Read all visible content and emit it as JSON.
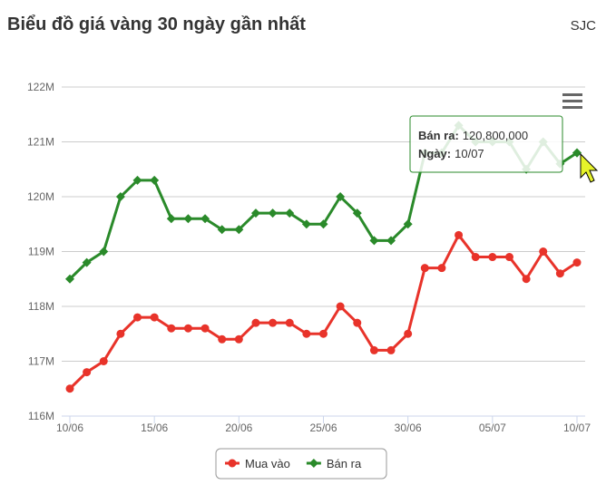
{
  "chart_data": {
    "type": "line",
    "title": "Biểu đồ giá vàng 30 ngày gần nhất",
    "subtitle": "SJC",
    "categories": [
      "10/06",
      null,
      null,
      null,
      null,
      "15/06",
      null,
      null,
      null,
      null,
      "20/06",
      null,
      null,
      null,
      null,
      "25/06",
      null,
      null,
      null,
      null,
      "30/06",
      null,
      null,
      null,
      null,
      "05/07",
      null,
      null,
      null,
      null,
      "10/07"
    ],
    "series": [
      {
        "name": "Mua vào",
        "color": "#e8332a",
        "marker": "circle",
        "values": [
          116.5,
          116.8,
          117.0,
          117.5,
          117.8,
          117.8,
          117.6,
          117.6,
          117.6,
          117.4,
          117.4,
          117.7,
          117.7,
          117.7,
          117.5,
          117.5,
          118.0,
          117.7,
          117.2,
          117.2,
          117.5,
          118.7,
          118.7,
          119.3,
          118.9,
          118.9,
          118.9,
          118.5,
          119.0,
          118.6,
          118.8
        ]
      },
      {
        "name": "Bán ra",
        "color": "#2a8a2a",
        "marker": "diamond",
        "values": [
          118.5,
          118.8,
          119.0,
          120.0,
          120.3,
          120.3,
          119.6,
          119.6,
          119.6,
          119.4,
          119.4,
          119.7,
          119.7,
          119.7,
          119.5,
          119.5,
          120.0,
          119.7,
          119.2,
          119.2,
          119.5,
          120.8,
          120.8,
          121.3,
          121.0,
          121.0,
          121.0,
          120.5,
          121.0,
          120.6,
          120.8
        ]
      }
    ],
    "ylim": [
      116,
      122
    ],
    "yticks": [
      {
        "value": 116,
        "label": "116M"
      },
      {
        "value": 117,
        "label": "117M"
      },
      {
        "value": 118,
        "label": "118M"
      },
      {
        "value": 119,
        "label": "119M"
      },
      {
        "value": 120,
        "label": "120M"
      },
      {
        "value": 121,
        "label": "121M"
      },
      {
        "value": 122,
        "label": "122M"
      }
    ],
    "grid": true,
    "legend": "bottom",
    "tooltip": {
      "series": 1,
      "index": 30,
      "lines": [
        {
          "key": "Bán ra:",
          "value": "120,800,000"
        },
        {
          "key": "Ngày:",
          "value": "10/07"
        }
      ]
    }
  }
}
